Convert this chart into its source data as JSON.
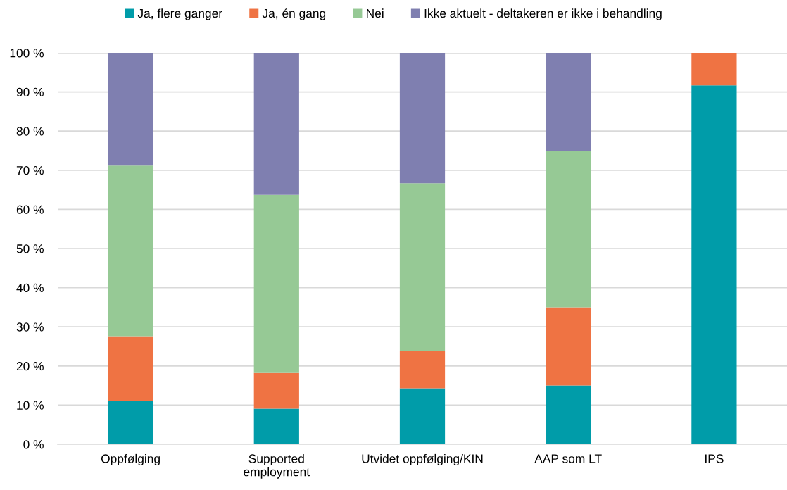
{
  "chart_data": {
    "type": "bar",
    "stacked": true,
    "categories": [
      "Oppfølging",
      "Supported\nemployment",
      "Utvidet oppfølging/KIN",
      "AAP som LT",
      "IPS"
    ],
    "series": [
      {
        "name": "Ja, flere ganger",
        "color": "#009ca9",
        "values": [
          11.1,
          9.1,
          14.3,
          15.0,
          91.7
        ]
      },
      {
        "name": "Ja, én gang",
        "color": "#ef7343",
        "values": [
          16.5,
          9.1,
          9.5,
          20.0,
          8.3
        ]
      },
      {
        "name": "Nei",
        "color": "#96c995",
        "values": [
          43.6,
          45.5,
          42.9,
          40.0,
          null
        ]
      },
      {
        "name": "Ikke aktuelt - deltakeren er ikke i behandling",
        "color": "#7f7fb0",
        "values": [
          28.8,
          36.3,
          33.3,
          25.0,
          null
        ]
      }
    ],
    "ylim": [
      0,
      100
    ],
    "yticks": [
      {
        "value": 0,
        "label": "0 %"
      },
      {
        "value": 10,
        "label": "10 %"
      },
      {
        "value": 20,
        "label": "20 %"
      },
      {
        "value": 30,
        "label": "30 %"
      },
      {
        "value": 40,
        "label": "40 %"
      },
      {
        "value": 50,
        "label": "50 %"
      },
      {
        "value": 60,
        "label": "60 %"
      },
      {
        "value": 70,
        "label": "70 %"
      },
      {
        "value": 80,
        "label": "80 %"
      },
      {
        "value": 90,
        "label": "90 %"
      },
      {
        "value": 100,
        "label": "100 %"
      }
    ],
    "grid": "y",
    "legend": "top"
  }
}
